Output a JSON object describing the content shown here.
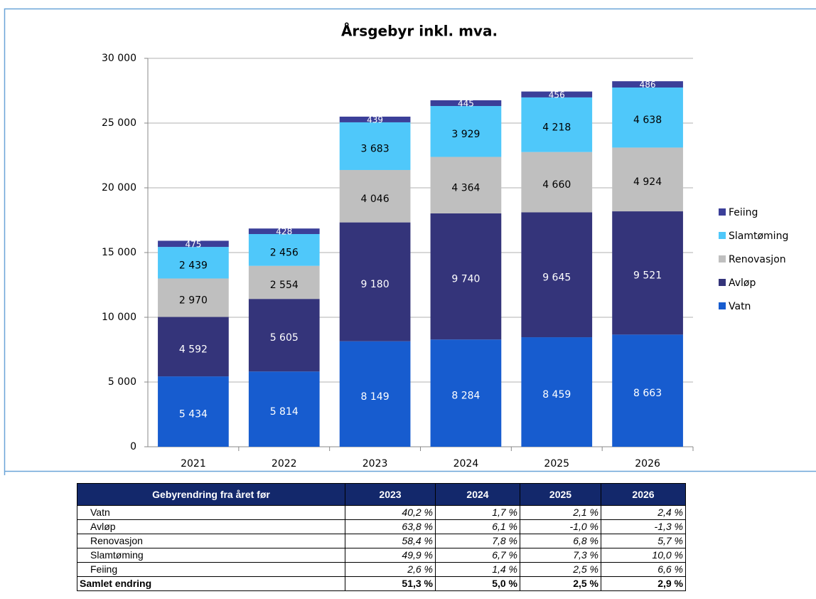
{
  "chart_data": {
    "type": "bar",
    "stacked": true,
    "title": "Årsgebyr inkl. mva.",
    "categories": [
      "2021",
      "2022",
      "2023",
      "2024",
      "2025",
      "2026"
    ],
    "series": [
      {
        "name": "Vatn",
        "color": "#175ccf",
        "values": [
          5434,
          5814,
          8149,
          8284,
          8459,
          8663
        ],
        "value_labels": [
          "5 434",
          "5 814",
          "8 149",
          "8 284",
          "8 459",
          "8 663"
        ]
      },
      {
        "name": "Avløp",
        "color": "#34347a",
        "values": [
          4592,
          5605,
          9180,
          9740,
          9645,
          9521
        ],
        "value_labels": [
          "4 592",
          "5 605",
          "9 180",
          "9 740",
          "9 645",
          "9 521"
        ]
      },
      {
        "name": "Renovasjon",
        "color": "#bfbfbf",
        "values": [
          2970,
          2554,
          4046,
          4364,
          4660,
          4924
        ],
        "value_labels": [
          "2 970",
          "2 554",
          "4 046",
          "4 364",
          "4 660",
          "4 924"
        ]
      },
      {
        "name": "Slamtøming",
        "color": "#4fc8fa",
        "values": [
          2439,
          2456,
          3683,
          3929,
          4218,
          4638
        ],
        "value_labels": [
          "2 439",
          "2 456",
          "3 683",
          "3 929",
          "4 218",
          "4 638"
        ]
      },
      {
        "name": "Feiing",
        "color": "#3b3f99",
        "values": [
          475,
          428,
          439,
          445,
          456,
          486
        ]
      }
    ],
    "ylim": [
      0,
      30000
    ],
    "yticks": [
      0,
      {
        "value": 5000,
        "label": "5 000"
      },
      {
        "value": 10000,
        "label": "10 000"
      },
      {
        "value": 15000,
        "label": "15 000"
      },
      {
        "value": 20000,
        "label": "20 000"
      },
      {
        "value": 25000,
        "label": "25 000"
      },
      {
        "value": 30000,
        "label": "30 000"
      }
    ],
    "grid": true,
    "legend": "right"
  },
  "table": {
    "header": [
      "Gebyrendring fra året før",
      "2023",
      "2024",
      "2025",
      "2026"
    ],
    "rows": [
      [
        "Vatn",
        "40,2 %",
        "1,7 %",
        "2,1 %",
        "2,4 %"
      ],
      [
        "Avløp",
        "63,8 %",
        "6,1 %",
        "-1,0 %",
        "-1,3 %"
      ],
      [
        "Renovasjon",
        "58,4 %",
        "7,8 %",
        "6,8 %",
        "5,7 %"
      ],
      [
        "Slamtøming",
        "49,9 %",
        "6,7 %",
        "7,3 %",
        "10,0 %"
      ],
      [
        "Feiing",
        "2,6 %",
        "1,4 %",
        "2,5 %",
        "6,6 %"
      ],
      [
        "Samlet endring",
        "51,3 %",
        "5,0 %",
        "2,5 %",
        "2,9 %"
      ]
    ]
  }
}
